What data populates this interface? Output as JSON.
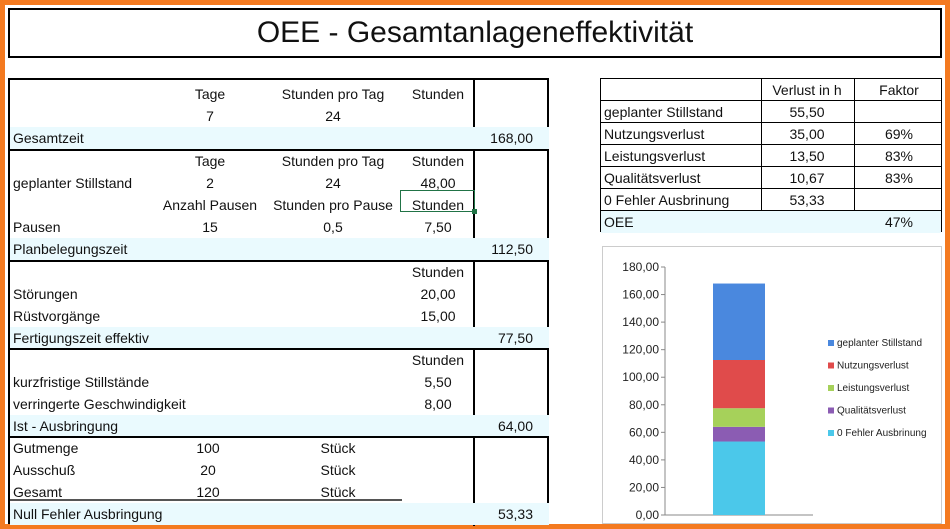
{
  "title": "OEE - Gesamtanlageneffektivität",
  "left": {
    "r1": {
      "c1": "Tage",
      "c2": "Stunden pro Tag",
      "c3": "Stunden"
    },
    "r2": {
      "c1": "7",
      "c2": "24"
    },
    "gesamtzeit": {
      "label": "Gesamtzeit",
      "value": "168,00"
    },
    "r4": {
      "c1": "Tage",
      "c2": "Stunden pro Tag",
      "c3": "Stunden"
    },
    "r5": {
      "c0": "geplanter Stillstand",
      "c1": "2",
      "c2": "24",
      "c3": "48,00"
    },
    "r6": {
      "c1": "Anzahl Pausen",
      "c2": "Stunden pro Pause",
      "c3": "Stunden"
    },
    "r7": {
      "c0": "Pausen",
      "c1": "15",
      "c2": "0,5",
      "c3": "7,50"
    },
    "planbelegungszeit": {
      "label": "Planbelegungszeit",
      "value": "112,50"
    },
    "r9": {
      "c3": "Stunden"
    },
    "r10": {
      "c0": "Störungen",
      "c3": "20,00"
    },
    "r11": {
      "c0": "Rüstvorgänge",
      "c3": "15,00"
    },
    "fertigungszeit": {
      "label": "Fertigungszeit effektiv",
      "value": "77,50"
    },
    "r13": {
      "c3": "Stunden"
    },
    "r14": {
      "c0": "kurzfristige Stillstände",
      "c3": "5,50"
    },
    "r15": {
      "c0": "verringerte Geschwindigkeit",
      "c3": "8,00"
    },
    "ist": {
      "label": "Ist - Ausbringung",
      "value": "64,00"
    },
    "r17": {
      "c0": "Gutmenge",
      "c1": "100",
      "c2": "Stück"
    },
    "r18": {
      "c0": "Ausschuß",
      "c1": "20",
      "c2": "Stück"
    },
    "r19": {
      "c0": "Gesamt",
      "c1": "120",
      "c2": "Stück"
    },
    "nullfehler": {
      "label": "Null Fehler Ausbringung",
      "value": "53,33"
    }
  },
  "right": {
    "header": {
      "c1": "Verlust in h",
      "c2": "Faktor"
    },
    "rows": [
      {
        "c0": "geplanter Stillstand",
        "c1": "55,50",
        "c2": ""
      },
      {
        "c0": "Nutzungsverlust",
        "c1": "35,00",
        "c2": "69%"
      },
      {
        "c0": "Leistungsverlust",
        "c1": "13,50",
        "c2": "83%"
      },
      {
        "c0": "Qualitätsverlust",
        "c1": "10,67",
        "c2": "83%"
      },
      {
        "c0": "0 Fehler Ausbrinung",
        "c1": "53,33",
        "c2": ""
      }
    ],
    "oee": {
      "c0": "OEE",
      "c2": "47%"
    }
  },
  "chart_data": {
    "type": "bar",
    "stacked": true,
    "categories": [
      ""
    ],
    "ylim": [
      0,
      180
    ],
    "yticks": [
      "0,00",
      "20,00",
      "40,00",
      "60,00",
      "80,00",
      "100,00",
      "120,00",
      "140,00",
      "160,00",
      "180,00"
    ],
    "series": [
      {
        "name": "0 Fehler Ausbrinung",
        "values": [
          53.33
        ],
        "color": "#4bc8ea"
      },
      {
        "name": "Qualitätsverlust",
        "values": [
          10.67
        ],
        "color": "#8b5cb3"
      },
      {
        "name": "Leistungsverlust",
        "values": [
          13.5
        ],
        "color": "#a6d15a"
      },
      {
        "name": "Nutzungsverlust",
        "values": [
          35.0
        ],
        "color": "#e04b4b"
      },
      {
        "name": "geplanter Stillstand",
        "values": [
          55.5
        ],
        "color": "#4a88de"
      }
    ],
    "legend_order": [
      "geplanter Stillstand",
      "Nutzungsverlust",
      "Leistungsverlust",
      "Qualitätsverlust",
      "0 Fehler Ausbrinung"
    ],
    "legend": "right",
    "grid": false
  }
}
